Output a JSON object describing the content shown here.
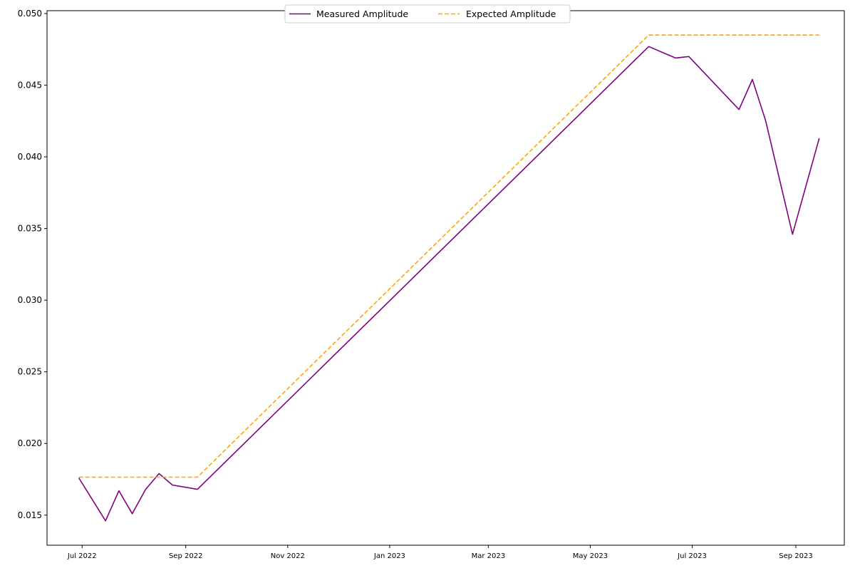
{
  "chart_data": {
    "type": "line",
    "title": "",
    "xlabel": "",
    "ylabel": "",
    "x_axis_type": "date",
    "xlim": [
      "2022-06-10",
      "2023-09-30"
    ],
    "ylim": [
      0.0129,
      0.0502
    ],
    "grid": false,
    "legend_position": "top-center",
    "yticks": [
      0.015,
      0.02,
      0.025,
      0.03,
      0.035,
      0.04,
      0.045,
      0.05
    ],
    "ytick_labels": [
      "0.015",
      "0.020",
      "0.025",
      "0.030",
      "0.035",
      "0.040",
      "0.045",
      "0.050"
    ],
    "xticks": [
      "2022-07-01",
      "2022-09-01",
      "2022-11-01",
      "2023-01-01",
      "2023-03-01",
      "2023-05-01",
      "2023-07-01",
      "2023-09-01"
    ],
    "xtick_labels": [
      "Jul 2022",
      "Sep 2022",
      "Nov 2022",
      "Jan 2023",
      "Mar 2023",
      "May 2023",
      "Jul 2023",
      "Sep 2023"
    ],
    "series": [
      {
        "name": "Measured Amplitude",
        "color": "#800080",
        "style": "solid",
        "points": [
          {
            "x": "2022-06-29",
            "y": 0.0176
          },
          {
            "x": "2022-07-15",
            "y": 0.0146
          },
          {
            "x": "2022-07-23",
            "y": 0.0167
          },
          {
            "x": "2022-07-31",
            "y": 0.0151
          },
          {
            "x": "2022-08-08",
            "y": 0.0168
          },
          {
            "x": "2022-08-16",
            "y": 0.0179
          },
          {
            "x": "2022-08-24",
            "y": 0.0171
          },
          {
            "x": "2022-09-08",
            "y": 0.0168
          },
          {
            "x": "2023-06-05",
            "y": 0.0477
          },
          {
            "x": "2023-06-21",
            "y": 0.0469
          },
          {
            "x": "2023-06-29",
            "y": 0.047
          },
          {
            "x": "2023-07-29",
            "y": 0.0433
          },
          {
            "x": "2023-08-06",
            "y": 0.0454
          },
          {
            "x": "2023-08-14",
            "y": 0.0425
          },
          {
            "x": "2023-08-30",
            "y": 0.0346
          },
          {
            "x": "2023-09-15",
            "y": 0.0413
          }
        ]
      },
      {
        "name": "Expected Amplitude",
        "color": "#ffa500",
        "style": "dashed",
        "points": [
          {
            "x": "2022-06-29",
            "y": 0.01765
          },
          {
            "x": "2022-09-08",
            "y": 0.01765
          },
          {
            "x": "2023-06-05",
            "y": 0.0485
          },
          {
            "x": "2023-09-15",
            "y": 0.0485
          }
        ]
      }
    ]
  }
}
